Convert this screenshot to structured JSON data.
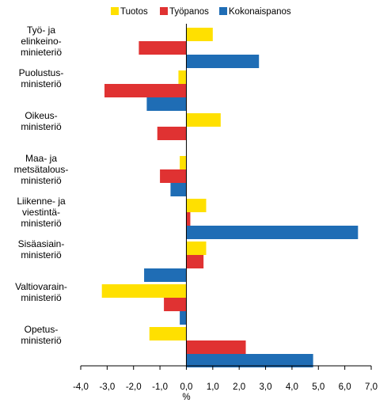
{
  "chart_data": {
    "type": "bar",
    "orientation": "horizontal",
    "categories": [
      [
        "Työ- ja",
        "elinkeino-",
        "minieteriö"
      ],
      [
        "Puolustus-",
        "ministeriö"
      ],
      [
        "Oikeus-",
        "ministeriö"
      ],
      [
        "Maa- ja",
        "metsätalous-",
        "ministeriö"
      ],
      [
        "Liikenne- ja",
        "viestintä-",
        "ministeriö"
      ],
      [
        "Sisäasiain-",
        "ministeriö"
      ],
      [
        "Valtiovarain-",
        "ministeriö"
      ],
      [
        "Opetus-",
        "ministeriö"
      ]
    ],
    "series": [
      {
        "name": "Tuotos",
        "color": "#ffe000",
        "values": [
          1.0,
          -0.3,
          1.3,
          -0.25,
          0.75,
          0.75,
          -3.2,
          -1.4
        ]
      },
      {
        "name": "Työpanos",
        "color": "#e03232",
        "values": [
          -1.8,
          -3.1,
          -1.1,
          -1.0,
          0.15,
          0.65,
          -0.85,
          2.25
        ]
      },
      {
        "name": "Kokonaispanos",
        "color": "#1f6db5",
        "values": [
          2.75,
          -1.5,
          0.0,
          -0.6,
          6.5,
          -1.6,
          -0.25,
          4.8
        ]
      }
    ],
    "xlim": [
      -4.0,
      7.0
    ],
    "xticks": [
      "-4,0",
      "-3,0",
      "-2,0",
      "-1,0",
      "0,0",
      "1,0",
      "2,0",
      "3,0",
      "4,0",
      "5,0",
      "6,0",
      "7,0"
    ],
    "xlabel": "%",
    "legend_position": "top",
    "grid": false
  }
}
